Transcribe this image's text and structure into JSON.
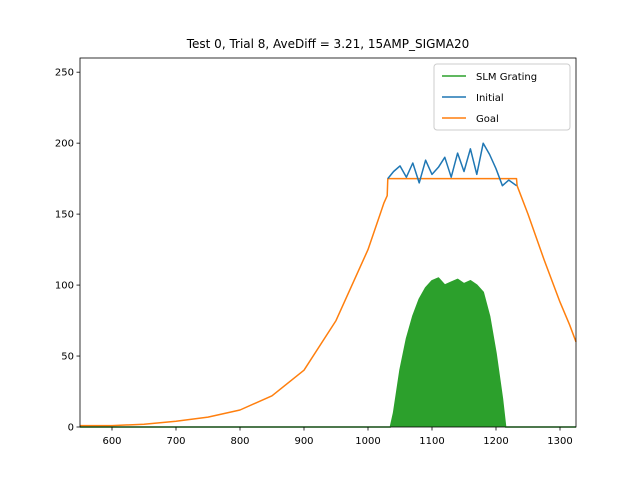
{
  "chart_data": {
    "type": "line",
    "title": "Test 0, Trial 8, AveDiff = 3.21, 15AMP_SIGMA20",
    "xlabel": "",
    "ylabel": "",
    "xlim": [
      550,
      1325
    ],
    "ylim": [
      0,
      260
    ],
    "x_ticks": [
      600,
      700,
      800,
      900,
      1000,
      1100,
      1200,
      1300
    ],
    "y_ticks": [
      0,
      50,
      100,
      150,
      200,
      250
    ],
    "grid": false,
    "legend_position": "top-right",
    "legend": [
      "SLM Grating",
      "Initial",
      "Goal"
    ],
    "colors": {
      "SLM Grating": "#2ca02c",
      "Initial": "#1f77b4",
      "Goal": "#ff7f0e"
    },
    "series": [
      {
        "name": "Goal",
        "x": [
          550,
          600,
          650,
          700,
          750,
          800,
          850,
          900,
          950,
          1000,
          1025,
          1030,
          1031,
          1232,
          1233,
          1250,
          1275,
          1300,
          1315,
          1325
        ],
        "y": [
          1,
          1,
          2,
          4,
          7,
          12,
          22,
          40,
          75,
          125,
          158,
          163,
          175,
          175,
          170,
          150,
          118,
          88,
          72,
          60
        ]
      },
      {
        "name": "Initial",
        "x": [
          1031,
          1040,
          1050,
          1060,
          1070,
          1080,
          1090,
          1100,
          1110,
          1120,
          1130,
          1140,
          1150,
          1160,
          1170,
          1180,
          1190,
          1200,
          1210,
          1220,
          1232
        ],
        "y": [
          175,
          180,
          184,
          176,
          186,
          172,
          188,
          178,
          183,
          190,
          176,
          193,
          180,
          196,
          178,
          200,
          192,
          182,
          170,
          174,
          170
        ]
      },
      {
        "name": "SLM Grating",
        "x": [
          550,
          1035,
          1040,
          1050,
          1060,
          1070,
          1080,
          1090,
          1100,
          1110,
          1120,
          1130,
          1140,
          1150,
          1160,
          1170,
          1180,
          1190,
          1200,
          1210,
          1215,
          1325
        ],
        "y": [
          0,
          0,
          10,
          40,
          62,
          78,
          90,
          98,
          103,
          105,
          100,
          102,
          104,
          101,
          103,
          100,
          95,
          78,
          52,
          20,
          0,
          0
        ]
      }
    ]
  }
}
